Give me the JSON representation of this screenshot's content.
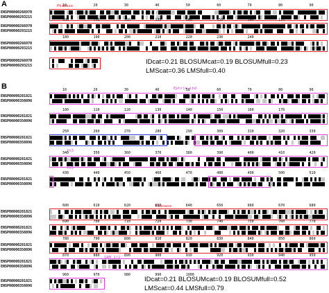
{
  "panel_a": {
    "letter": "A",
    "domains": {
      "pkinase": "Pkinase"
    },
    "sequences": [
      "ENSP00000266970",
      "ENSP00000293215"
    ],
    "blocks": [
      {
        "ticks": [
          "10",
          "20",
          "30",
          "40",
          "50",
          "60",
          "70",
          "80",
          "90"
        ]
      },
      {
        "ticks": [
          "100",
          "110",
          "120",
          "130",
          "140",
          "150",
          "160",
          "170"
        ]
      },
      {
        "ticks": [
          "180",
          "190",
          "200",
          "210",
          "220",
          "230",
          "240"
        ]
      }
    ],
    "stats": {
      "line1": "IDcat=0.21 BLOSUMcat=0.19 BLOSUMfull=0.23",
      "line2": "LMScat=0.36 LMSfull=0.40"
    }
  },
  "panel_b": {
    "letter": "B",
    "domains": {
      "ephrin": "Ephrin_lbd",
      "gcc": "GCC",
      "fn3_1": "fn3",
      "fn3_2": "fn3",
      "fn3_3": "fn3",
      "pkinase": "Pkinase",
      "sam": "SAM_1/2"
    },
    "sequences": [
      "ENSP00000281821",
      "ENSP00000350896"
    ],
    "blocks": [
      {
        "ticks": [
          "10",
          "20",
          "30",
          "40",
          "50",
          "60",
          "70",
          "80",
          "90"
        ]
      },
      {
        "ticks": [
          "100",
          "110",
          "120",
          "130",
          "140",
          "150",
          "160",
          "170"
        ]
      },
      {
        "ticks": [
          "250",
          "260",
          "270",
          "280",
          "290",
          "300",
          "310",
          "320",
          "330"
        ]
      },
      {
        "ticks": [
          "340",
          "350",
          "360",
          "370",
          "380",
          "390",
          "400",
          "410",
          "420"
        ]
      },
      {
        "ticks": [
          "430",
          "440",
          "450",
          "460",
          "470",
          "480",
          "490",
          "500",
          "510"
        ]
      },
      {
        "ticks": [
          "600",
          "610",
          "620",
          "630",
          "640",
          "650",
          "660",
          "670",
          "680"
        ]
      },
      {
        "ticks": [
          "690",
          "700",
          "710",
          "720",
          "730",
          "740",
          "750",
          "760",
          "770"
        ]
      },
      {
        "ticks": [
          "780",
          "790",
          "800",
          "810",
          "820",
          "830",
          "840",
          "850",
          "860"
        ]
      },
      {
        "ticks": [
          "870",
          "880",
          "890",
          "900",
          "910",
          "920",
          "930",
          "940",
          "950"
        ]
      },
      {
        "ticks": [
          "960",
          "970",
          "980",
          "990",
          "1000"
        ]
      }
    ],
    "stats": {
      "line1": "IDcat=0.21 BLOSUMcat=0.19 BLOSUMfull=0.52",
      "line2": "LMScat=0.44 LMSfull=0.79"
    }
  },
  "colors": {
    "identical": "#000000",
    "similar": "#c8c8c8",
    "domain_pkinase": "#e8202a",
    "domain_ephrin": "#e040e0",
    "domain_fn3": "#e040e0",
    "domain_gcc": "#2a3fd0",
    "domain_sam": "#e040e0"
  }
}
